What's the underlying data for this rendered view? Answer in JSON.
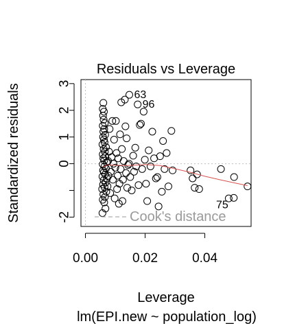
{
  "chart_data": {
    "type": "scatter",
    "title": "Residuals vs Leverage",
    "xlabel": "Leverage",
    "sublabel": "lm(EPI.new ~ population_log)",
    "ylabel": "Standardized residuals",
    "xlim": [
      -0.0015,
      0.0555
    ],
    "ylim": [
      -2.35,
      3.15
    ],
    "x_ticks": [
      0.0,
      0.02,
      0.04
    ],
    "x_tick_labels": [
      "0.00",
      "0.02",
      "0.04"
    ],
    "y_ticks": [
      -2,
      -1,
      0,
      1,
      2,
      3
    ],
    "y_tick_labels": [
      "-2",
      "",
      "0",
      "1",
      "2",
      "3"
    ],
    "reference_lines": {
      "x": 0,
      "y": 0,
      "style": "dotted",
      "color": "#bdbdbd"
    },
    "legend": {
      "label": "Cook's distance",
      "position": "bottom-left",
      "line_style": "dashed",
      "color": "#9a9a9a"
    },
    "point_style": {
      "shape": "open-circle",
      "stroke": "#000000"
    },
    "smooth_color": "#d9534f",
    "labeled_points": [
      {
        "label": "63",
        "x": 0.0147,
        "y": 2.58
      },
      {
        "label": "96",
        "x": 0.0175,
        "y": 2.22
      },
      {
        "label": "75",
        "x": 0.0497,
        "y": -1.28
      }
    ],
    "points": [
      [
        0.0057,
        -1.85
      ],
      [
        0.0067,
        -1.68
      ],
      [
        0.0063,
        -1.45
      ],
      [
        0.0058,
        -1.35
      ],
      [
        0.0065,
        -1.25
      ],
      [
        0.006,
        -1.15
      ],
      [
        0.007,
        -1.05
      ],
      [
        0.0056,
        -0.95
      ],
      [
        0.0064,
        -0.88
      ],
      [
        0.0059,
        -0.78
      ],
      [
        0.0068,
        -0.7
      ],
      [
        0.0061,
        -0.62
      ],
      [
        0.0072,
        -0.55
      ],
      [
        0.0057,
        -0.48
      ],
      [
        0.0066,
        -0.4
      ],
      [
        0.0062,
        -0.32
      ],
      [
        0.0059,
        -0.25
      ],
      [
        0.0069,
        -0.18
      ],
      [
        0.0064,
        -0.1
      ],
      [
        0.0058,
        -0.02
      ],
      [
        0.0071,
        0.05
      ],
      [
        0.0063,
        0.12
      ],
      [
        0.006,
        0.2
      ],
      [
        0.0067,
        0.28
      ],
      [
        0.0058,
        0.35
      ],
      [
        0.0065,
        0.45
      ],
      [
        0.0061,
        0.55
      ],
      [
        0.0069,
        0.62
      ],
      [
        0.0057,
        0.72
      ],
      [
        0.0064,
        0.8
      ],
      [
        0.0062,
        0.9
      ],
      [
        0.0059,
        1.0
      ],
      [
        0.0066,
        1.08
      ],
      [
        0.006,
        1.2
      ],
      [
        0.0063,
        1.3
      ],
      [
        0.0058,
        1.42
      ],
      [
        0.0065,
        1.52
      ],
      [
        0.0061,
        1.65
      ],
      [
        0.0059,
        1.8
      ],
      [
        0.0062,
        1.95
      ],
      [
        0.0058,
        2.05
      ],
      [
        0.006,
        2.28
      ],
      [
        0.0074,
        -0.85
      ],
      [
        0.0077,
        -0.45
      ],
      [
        0.0076,
        0.1
      ],
      [
        0.0079,
        0.45
      ],
      [
        0.0081,
        1.3
      ],
      [
        0.0083,
        -1.1
      ],
      [
        0.0085,
        -0.3
      ],
      [
        0.0088,
        0.25
      ],
      [
        0.009,
        1.6
      ],
      [
        0.0092,
        -0.6
      ],
      [
        0.0094,
        0.0
      ],
      [
        0.0096,
        0.9
      ],
      [
        0.0098,
        -1.3
      ],
      [
        0.01,
        -0.15
      ],
      [
        0.0102,
        1.6
      ],
      [
        0.0104,
        0.4
      ],
      [
        0.0106,
        -0.95
      ],
      [
        0.0108,
        -0.45
      ],
      [
        0.011,
        0.2
      ],
      [
        0.0112,
        -1.5
      ],
      [
        0.0114,
        -0.75
      ],
      [
        0.0116,
        1.1
      ],
      [
        0.0118,
        -0.2
      ],
      [
        0.012,
        2.3
      ],
      [
        0.0122,
        0.55
      ],
      [
        0.0124,
        -1.4
      ],
      [
        0.0126,
        -0.6
      ],
      [
        0.0128,
        0.1
      ],
      [
        0.0132,
        2.4
      ],
      [
        0.0134,
        1.4
      ],
      [
        0.0136,
        -0.35
      ],
      [
        0.0138,
        0.95
      ],
      [
        0.014,
        -0.9
      ],
      [
        0.0143,
        -0.05
      ],
      [
        0.0146,
        0.0
      ],
      [
        0.015,
        -0.5
      ],
      [
        0.0155,
        -1.0
      ],
      [
        0.016,
        0.3
      ],
      [
        0.0163,
        -0.3
      ],
      [
        0.0167,
        0.6
      ],
      [
        0.017,
        -0.1
      ],
      [
        0.0178,
        -0.8
      ],
      [
        0.0182,
        1.45
      ],
      [
        0.0186,
        1.5
      ],
      [
        0.019,
        -0.2
      ],
      [
        0.0195,
        1.95
      ],
      [
        0.0199,
        0.15
      ],
      [
        0.0203,
        -0.75
      ],
      [
        0.0207,
        -1.4
      ],
      [
        0.0212,
        0.5
      ],
      [
        0.0218,
        -0.1
      ],
      [
        0.0224,
        1.2
      ],
      [
        0.023,
        0.2
      ],
      [
        0.0236,
        -0.55
      ],
      [
        0.0241,
        -0.5
      ],
      [
        0.0245,
        -1.6
      ],
      [
        0.025,
        0.28
      ],
      [
        0.0256,
        -1.05
      ],
      [
        0.026,
        0.85
      ],
      [
        0.0265,
        -0.2
      ],
      [
        0.0272,
        0.4
      ],
      [
        0.0278,
        -0.85
      ],
      [
        0.0288,
        1.23
      ],
      [
        0.0292,
        -0.25
      ],
      [
        0.0352,
        -0.25
      ],
      [
        0.0359,
        -0.55
      ],
      [
        0.0366,
        -0.9
      ],
      [
        0.0374,
        -0.4
      ],
      [
        0.0381,
        -0.95
      ],
      [
        0.0454,
        -0.2
      ],
      [
        0.0498,
        -0.5
      ],
      [
        0.0543,
        -0.85
      ],
      [
        0.048,
        -1.3
      ]
    ],
    "smooth_curve": [
      [
        0.0058,
        -0.12
      ],
      [
        0.0075,
        -0.04
      ],
      [
        0.01,
        -0.06
      ],
      [
        0.014,
        -0.07
      ],
      [
        0.02,
        -0.03
      ],
      [
        0.025,
        -0.07
      ],
      [
        0.03,
        -0.19
      ],
      [
        0.035,
        -0.32
      ],
      [
        0.04,
        -0.47
      ],
      [
        0.045,
        -0.6
      ],
      [
        0.05,
        -0.72
      ],
      [
        0.0543,
        -0.82
      ]
    ]
  }
}
